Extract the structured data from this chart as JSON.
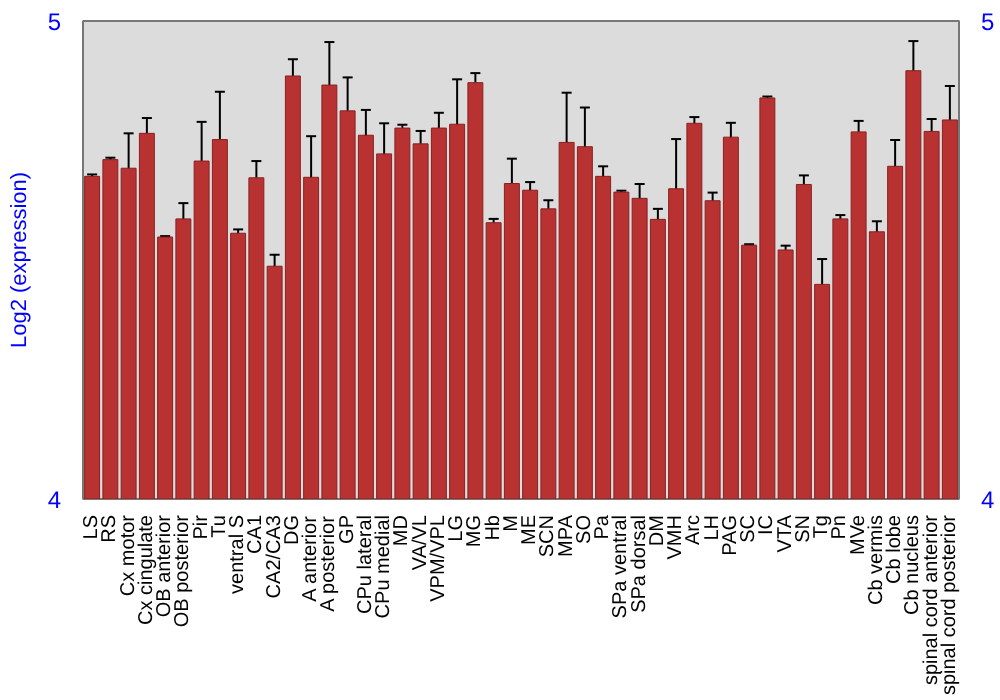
{
  "chart_data": {
    "type": "bar",
    "ylabel": "Log2 (expression)",
    "categories": [
      "LS",
      "RS",
      "Cx motor",
      "Cx cingulate",
      "OB anterior",
      "OB posterior",
      "Pir",
      "Tu",
      "ventral S",
      "CA1",
      "CA2/CA3",
      "DG",
      "A anterior",
      "A posterior",
      "GP",
      "CPu lateral",
      "CPu medial",
      "MD",
      "VA/VL",
      "VPM/VPL",
      "LG",
      "MG",
      "Hb",
      "M",
      "ME",
      "SCN",
      "MPA",
      "SO",
      "Pa",
      "SPa ventral",
      "SPa dorsal",
      "DM",
      "VMH",
      "Arc",
      "LH",
      "PAG",
      "SC",
      "IC",
      "VTA",
      "SN",
      "Tg",
      "Pn",
      "MVe",
      "Cb vermis",
      "Cb lobe",
      "Cb nucleus",
      "spinal cord anterior",
      "spinal cord posterior"
    ],
    "values": [
      4.675,
      4.71,
      4.692,
      4.765,
      4.548,
      4.586,
      4.707,
      4.752,
      4.556,
      4.672,
      4.487,
      4.885,
      4.673,
      4.866,
      4.812,
      4.761,
      4.722,
      4.776,
      4.743,
      4.776,
      4.784,
      4.871,
      4.578,
      4.66,
      4.646,
      4.607,
      4.746,
      4.737,
      4.675,
      4.642,
      4.629,
      4.585,
      4.649,
      4.786,
      4.624,
      4.757,
      4.531,
      4.839,
      4.521,
      4.658,
      4.449,
      4.586,
      4.768,
      4.559,
      4.696,
      4.896,
      4.769,
      4.793
    ],
    "errors": [
      0.004,
      0.004,
      0.073,
      0.032,
      0.002,
      0.033,
      0.082,
      0.1,
      0.008,
      0.035,
      0.024,
      0.035,
      0.086,
      0.09,
      0.07,
      0.053,
      0.064,
      0.007,
      0.027,
      0.032,
      0.094,
      0.02,
      0.008,
      0.052,
      0.017,
      0.018,
      0.104,
      0.082,
      0.021,
      0.003,
      0.03,
      0.022,
      0.104,
      0.013,
      0.017,
      0.03,
      0.002,
      0.003,
      0.009,
      0.019,
      0.053,
      0.008,
      0.023,
      0.022,
      0.055,
      0.062,
      0.026,
      0.071
    ],
    "color": "#b83232",
    "ylim": [
      4,
      5
    ],
    "yticks": [
      4,
      5
    ],
    "y2lim": [
      4,
      5
    ],
    "y2ticks": [
      4,
      5
    ],
    "grid": false
  }
}
